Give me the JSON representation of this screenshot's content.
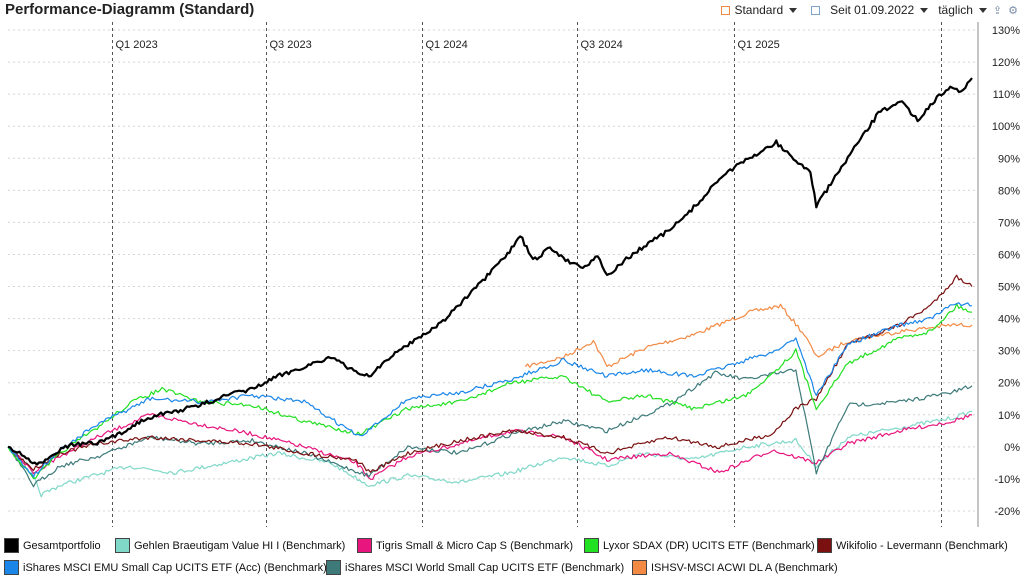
{
  "header": {
    "title": "Performance-Diagramm (Standard)",
    "view_label": "Standard",
    "since_label": "Seit 01.09.2022",
    "interval_label": "täglich",
    "icons": [
      "square-icon",
      "chevron-down-icon",
      "calendar-icon",
      "chevron-down-icon",
      "chevron-down-icon",
      "upload-icon",
      "gear-icon"
    ]
  },
  "chart_data": {
    "type": "line",
    "x_range": [
      "2022-09-01",
      "2025-10-15"
    ],
    "ylim": [
      -25,
      130
    ],
    "grid": "horizontal dotted, vertical dashed at quarter markers",
    "y_ticks": [
      -20,
      -10,
      0,
      10,
      20,
      30,
      40,
      50,
      60,
      70,
      80,
      90,
      100,
      110,
      120,
      130
    ],
    "y_tick_labels": [
      "-20%",
      "-10%",
      "0%",
      "10%",
      "20%",
      "30%",
      "40%",
      "50%",
      "60%",
      "70%",
      "80%",
      "90%",
      "100%",
      "110%",
      "120%",
      "130%"
    ],
    "x_markers": [
      {
        "label": "Q1 2023",
        "date": "2023-01-01"
      },
      {
        "label": "Q3 2023",
        "date": "2023-07-01"
      },
      {
        "label": "Q1 2024",
        "date": "2024-01-01"
      },
      {
        "label": "Q3 2024",
        "date": "2024-07-01"
      },
      {
        "label": "Q1 2025",
        "date": "2025-01-01"
      },
      {
        "label": "",
        "date": "2025-09-01"
      }
    ],
    "legend_position": "bottom",
    "series": [
      {
        "name": "Gesamtportfolio",
        "color": "#000000",
        "width": 2.2,
        "points": [
          [
            "2022-09-01",
            0
          ],
          [
            "2022-09-20",
            -3
          ],
          [
            "2022-10-05",
            -6
          ],
          [
            "2022-10-20",
            -3
          ],
          [
            "2022-11-05",
            0
          ],
          [
            "2022-11-25",
            1
          ],
          [
            "2022-12-15",
            1
          ],
          [
            "2023-01-10",
            4
          ],
          [
            "2023-02-10",
            9
          ],
          [
            "2023-03-15",
            11
          ],
          [
            "2023-04-15",
            13
          ],
          [
            "2023-05-15",
            16
          ],
          [
            "2023-06-15",
            18
          ],
          [
            "2023-07-15",
            22
          ],
          [
            "2023-08-15",
            25
          ],
          [
            "2023-09-15",
            28
          ],
          [
            "2023-10-10",
            24
          ],
          [
            "2023-10-30",
            22
          ],
          [
            "2023-11-20",
            27
          ],
          [
            "2023-12-15",
            32
          ],
          [
            "2024-01-20",
            38
          ],
          [
            "2024-02-20",
            46
          ],
          [
            "2024-03-20",
            54
          ],
          [
            "2024-04-10",
            60
          ],
          [
            "2024-04-25",
            66
          ],
          [
            "2024-05-10",
            58
          ],
          [
            "2024-05-30",
            62
          ],
          [
            "2024-06-20",
            58
          ],
          [
            "2024-07-10",
            56
          ],
          [
            "2024-07-25",
            60
          ],
          [
            "2024-08-05",
            53
          ],
          [
            "2024-08-25",
            58
          ],
          [
            "2024-09-20",
            63
          ],
          [
            "2024-10-20",
            68
          ],
          [
            "2024-11-20",
            76
          ],
          [
            "2024-12-20",
            85
          ],
          [
            "2025-01-20",
            90
          ],
          [
            "2025-02-20",
            95
          ],
          [
            "2025-03-15",
            89
          ],
          [
            "2025-04-01",
            86
          ],
          [
            "2025-04-08",
            75
          ],
          [
            "2025-04-25",
            82
          ],
          [
            "2025-05-20",
            92
          ],
          [
            "2025-06-20",
            104
          ],
          [
            "2025-07-15",
            108
          ],
          [
            "2025-08-05",
            102
          ],
          [
            "2025-08-25",
            108
          ],
          [
            "2025-09-10",
            112
          ],
          [
            "2025-09-25",
            111
          ],
          [
            "2025-10-08",
            115
          ]
        ]
      },
      {
        "name": "Gehlen Braeutigam Value HI I (Benchmark)",
        "color": "#7fd8c8",
        "width": 1.2,
        "points": [
          [
            "2022-09-01",
            0
          ],
          [
            "2022-09-25",
            -6
          ],
          [
            "2022-10-10",
            -15
          ],
          [
            "2022-11-01",
            -12
          ],
          [
            "2022-12-10",
            -9
          ],
          [
            "2023-01-20",
            -6
          ],
          [
            "2023-03-15",
            -8
          ],
          [
            "2023-05-15",
            -5
          ],
          [
            "2023-07-15",
            -2
          ],
          [
            "2023-09-15",
            -5
          ],
          [
            "2023-10-30",
            -12
          ],
          [
            "2023-12-15",
            -9
          ],
          [
            "2024-02-15",
            -11
          ],
          [
            "2024-04-15",
            -8
          ],
          [
            "2024-06-15",
            -3
          ],
          [
            "2024-08-05",
            -6
          ],
          [
            "2024-09-15",
            -2
          ],
          [
            "2024-11-15",
            -4
          ],
          [
            "2025-01-15",
            0
          ],
          [
            "2025-03-15",
            2
          ],
          [
            "2025-04-08",
            -6
          ],
          [
            "2025-05-15",
            3
          ],
          [
            "2025-07-15",
            6
          ],
          [
            "2025-09-15",
            9
          ],
          [
            "2025-10-08",
            11
          ]
        ]
      },
      {
        "name": "Tigris Small & Micro Cap S (Benchmark)",
        "color": "#e8157e",
        "width": 1.2,
        "points": [
          [
            "2022-09-01",
            0
          ],
          [
            "2022-10-01",
            -8
          ],
          [
            "2022-11-01",
            -3
          ],
          [
            "2022-12-15",
            3
          ],
          [
            "2023-02-15",
            10
          ],
          [
            "2023-04-15",
            7
          ],
          [
            "2023-06-15",
            4
          ],
          [
            "2023-08-15",
            0
          ],
          [
            "2023-10-15",
            -5
          ],
          [
            "2023-11-01",
            -10
          ],
          [
            "2023-12-15",
            -3
          ],
          [
            "2024-02-15",
            1
          ],
          [
            "2024-04-15",
            5
          ],
          [
            "2024-06-15",
            3
          ],
          [
            "2024-08-05",
            -4
          ],
          [
            "2024-10-15",
            -2
          ],
          [
            "2024-12-15",
            -8
          ],
          [
            "2025-02-15",
            -1
          ],
          [
            "2025-04-08",
            -5
          ],
          [
            "2025-05-15",
            1
          ],
          [
            "2025-07-15",
            5
          ],
          [
            "2025-09-15",
            8
          ],
          [
            "2025-10-08",
            10
          ]
        ]
      },
      {
        "name": "Lyxor SDAX (DR) UCITS ETF (Benchmark)",
        "color": "#22e022",
        "width": 1.2,
        "points": [
          [
            "2022-09-01",
            0
          ],
          [
            "2022-10-01",
            -10
          ],
          [
            "2022-11-01",
            -2
          ],
          [
            "2022-12-15",
            6
          ],
          [
            "2023-01-25",
            14
          ],
          [
            "2023-03-01",
            18
          ],
          [
            "2023-04-15",
            14
          ],
          [
            "2023-06-15",
            13
          ],
          [
            "2023-08-15",
            8
          ],
          [
            "2023-10-20",
            4
          ],
          [
            "2023-12-15",
            12
          ],
          [
            "2024-02-15",
            14
          ],
          [
            "2024-04-15",
            20
          ],
          [
            "2024-06-15",
            22
          ],
          [
            "2024-08-05",
            14
          ],
          [
            "2024-09-20",
            16
          ],
          [
            "2024-11-15",
            12
          ],
          [
            "2025-01-15",
            16
          ],
          [
            "2025-02-20",
            24
          ],
          [
            "2025-03-15",
            30
          ],
          [
            "2025-04-08",
            12
          ],
          [
            "2025-05-15",
            26
          ],
          [
            "2025-07-15",
            34
          ],
          [
            "2025-08-20",
            36
          ],
          [
            "2025-09-20",
            44
          ],
          [
            "2025-10-08",
            42
          ]
        ]
      },
      {
        "name": "Wikifolio - Levermann (Benchmark)",
        "color": "#7a1010",
        "width": 1.2,
        "points": [
          [
            "2022-09-01",
            0
          ],
          [
            "2022-10-01",
            -7
          ],
          [
            "2022-11-01",
            -2
          ],
          [
            "2022-12-15",
            1
          ],
          [
            "2023-02-15",
            3
          ],
          [
            "2023-04-15",
            2
          ],
          [
            "2023-06-15",
            1
          ],
          [
            "2023-08-15",
            -2
          ],
          [
            "2023-10-15",
            -4
          ],
          [
            "2023-11-01",
            -8
          ],
          [
            "2023-12-15",
            -2
          ],
          [
            "2024-02-15",
            2
          ],
          [
            "2024-04-15",
            5
          ],
          [
            "2024-06-15",
            3
          ],
          [
            "2024-08-05",
            -2
          ],
          [
            "2024-10-15",
            3
          ],
          [
            "2024-12-15",
            0
          ],
          [
            "2025-02-15",
            4
          ],
          [
            "2025-03-15",
            12
          ],
          [
            "2025-04-08",
            15
          ],
          [
            "2025-05-15",
            32
          ],
          [
            "2025-07-15",
            38
          ],
          [
            "2025-08-20",
            44
          ],
          [
            "2025-09-20",
            53
          ],
          [
            "2025-10-08",
            50
          ]
        ]
      },
      {
        "name": "iShares MSCI EMU Small Cap UCITS ETF (Acc) (Benchmark)",
        "color": "#1a86e8",
        "width": 1.2,
        "points": [
          [
            "2022-09-01",
            0
          ],
          [
            "2022-10-01",
            -9
          ],
          [
            "2022-11-01",
            -1
          ],
          [
            "2022-12-15",
            7
          ],
          [
            "2023-02-15",
            15
          ],
          [
            "2023-04-15",
            14
          ],
          [
            "2023-06-15",
            16
          ],
          [
            "2023-08-15",
            14
          ],
          [
            "2023-10-20",
            3
          ],
          [
            "2023-12-15",
            15
          ],
          [
            "2024-02-15",
            17
          ],
          [
            "2024-04-15",
            21
          ],
          [
            "2024-06-15",
            27
          ],
          [
            "2024-08-05",
            22
          ],
          [
            "2024-09-20",
            24
          ],
          [
            "2024-11-15",
            22
          ],
          [
            "2025-01-15",
            27
          ],
          [
            "2025-02-20",
            30
          ],
          [
            "2025-03-15",
            34
          ],
          [
            "2025-04-08",
            16
          ],
          [
            "2025-05-15",
            32
          ],
          [
            "2025-07-15",
            38
          ],
          [
            "2025-08-20",
            40
          ],
          [
            "2025-09-20",
            45
          ],
          [
            "2025-10-08",
            44
          ]
        ]
      },
      {
        "name": "iShares MSCI World Small Cap UCITS ETF (Benchmark)",
        "color": "#3e7a7a",
        "width": 1.2,
        "points": [
          [
            "2022-09-01",
            0
          ],
          [
            "2022-10-01",
            -12
          ],
          [
            "2022-11-01",
            -6
          ],
          [
            "2022-12-15",
            -3
          ],
          [
            "2023-02-15",
            3
          ],
          [
            "2023-04-15",
            1
          ],
          [
            "2023-06-15",
            2
          ],
          [
            "2023-08-15",
            -2
          ],
          [
            "2023-10-30",
            -9
          ],
          [
            "2023-12-15",
            0
          ],
          [
            "2024-02-15",
            -2
          ],
          [
            "2024-04-15",
            4
          ],
          [
            "2024-06-15",
            8
          ],
          [
            "2024-08-05",
            5
          ],
          [
            "2024-10-15",
            13
          ],
          [
            "2024-12-10",
            23
          ],
          [
            "2025-01-15",
            21
          ],
          [
            "2025-03-15",
            24
          ],
          [
            "2025-04-08",
            -8
          ],
          [
            "2025-05-15",
            13
          ],
          [
            "2025-07-15",
            14
          ],
          [
            "2025-09-15",
            17
          ],
          [
            "2025-10-08",
            19
          ]
        ]
      },
      {
        "name": "ISHSV-MSCI ACWI DL A (Benchmark)",
        "color": "#f28a44",
        "width": 1.2,
        "points": [
          [
            "2024-05-01",
            25
          ],
          [
            "2024-06-15",
            28
          ],
          [
            "2024-07-20",
            33
          ],
          [
            "2024-08-05",
            25
          ],
          [
            "2024-09-20",
            31
          ],
          [
            "2024-11-15",
            35
          ],
          [
            "2025-01-20",
            42
          ],
          [
            "2025-02-25",
            44
          ],
          [
            "2025-03-25",
            35
          ],
          [
            "2025-04-08",
            28
          ],
          [
            "2025-05-15",
            33
          ],
          [
            "2025-07-15",
            36
          ],
          [
            "2025-09-15",
            38
          ],
          [
            "2025-10-08",
            38
          ]
        ]
      }
    ]
  },
  "legend": [
    {
      "label": "Gesamtportfolio",
      "color": "#000000"
    },
    {
      "label": "Gehlen Braeutigam Value HI I (Benchmark)",
      "color": "#7fd8c8"
    },
    {
      "label": "Tigris Small & Micro Cap S (Benchmark)",
      "color": "#e8157e"
    },
    {
      "label": "Lyxor SDAX (DR) UCITS ETF (Benchmark)",
      "color": "#22e022"
    },
    {
      "label": "Wikifolio - Levermann (Benchmark)",
      "color": "#7a1010"
    },
    {
      "label": "iShares MSCI EMU Small Cap UCITS ETF (Acc) (Benchmark)",
      "color": "#1a86e8"
    },
    {
      "label": "iShares MSCI World Small Cap UCITS ETF (Benchmark)",
      "color": "#3e7a7a"
    },
    {
      "label": "ISHSV-MSCI ACWI DL A (Benchmark)",
      "color": "#f28a44"
    }
  ]
}
